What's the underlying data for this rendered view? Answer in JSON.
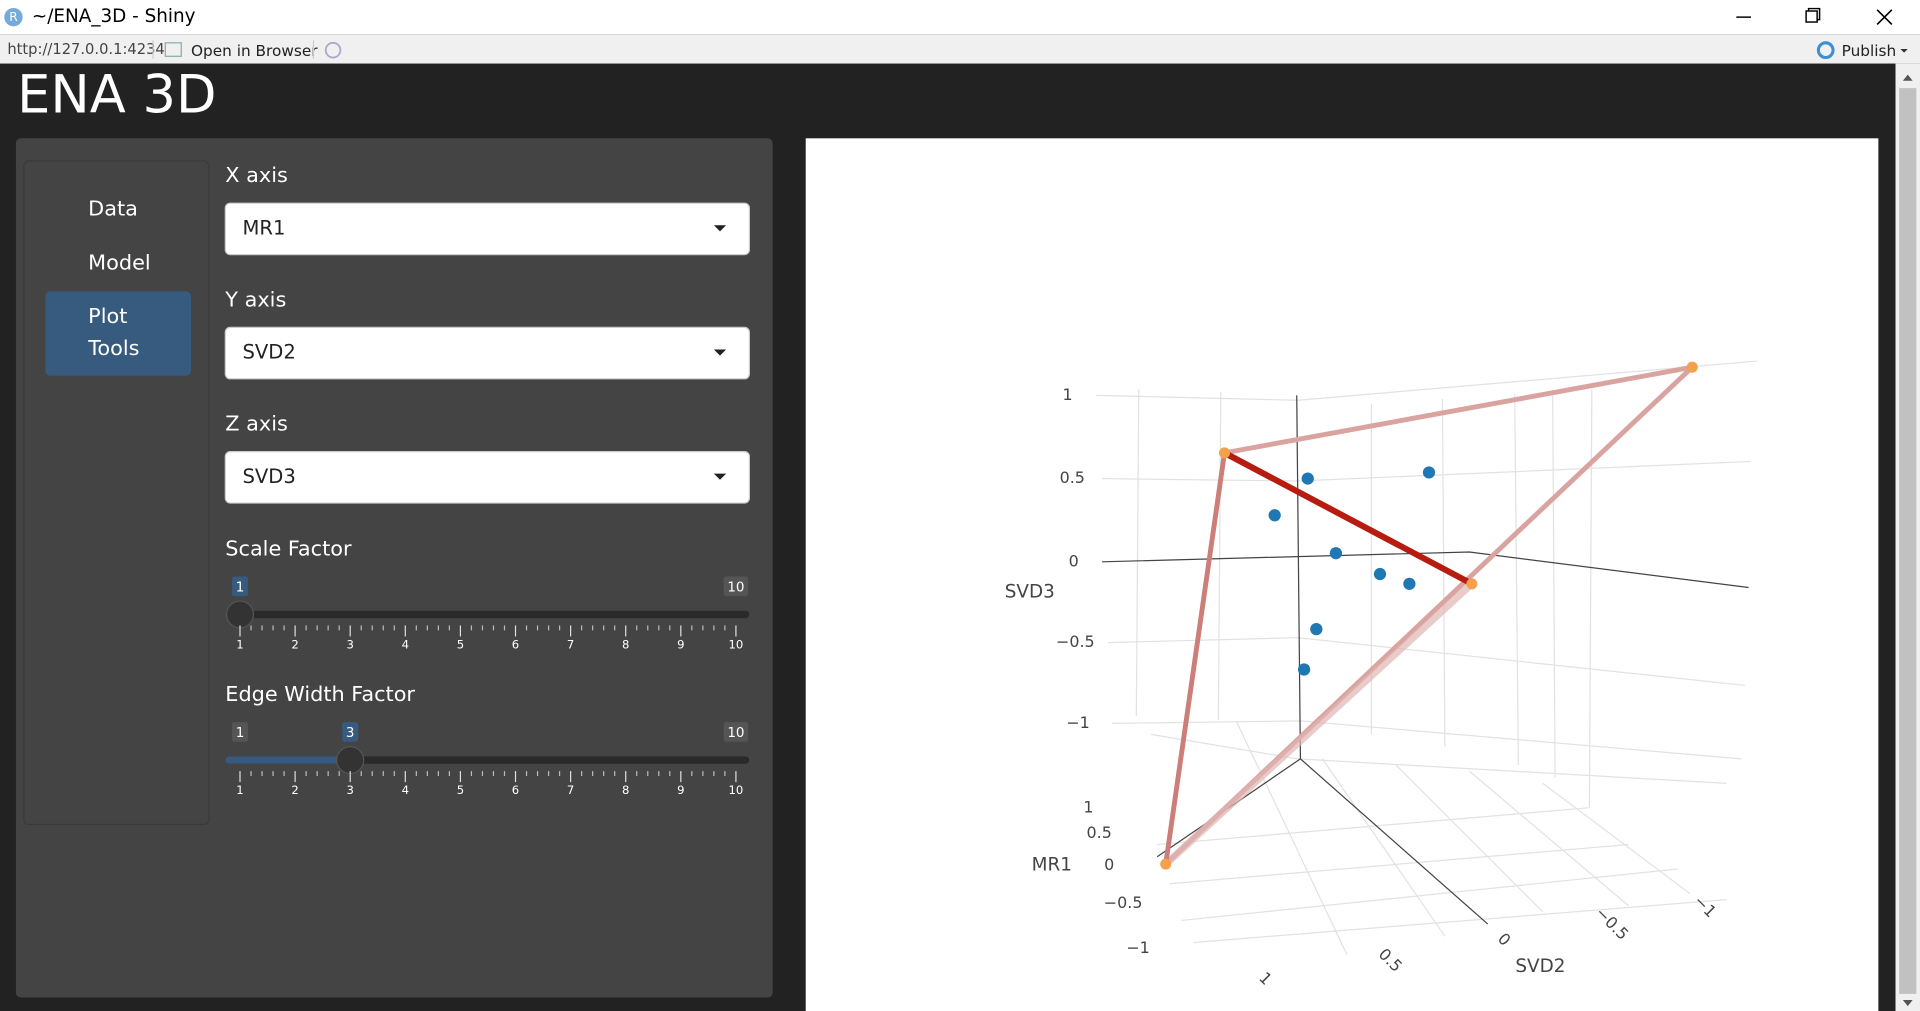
{
  "window": {
    "icon": "R",
    "title": "~/ENA_3D - Shiny"
  },
  "toolbar": {
    "url": "http://127.0.0.1:4234",
    "open_browser": "Open in Browser",
    "publish": "Publish"
  },
  "app": {
    "title": "ENA 3D"
  },
  "nav": {
    "items": [
      "Data",
      "Model",
      "Plot Tools"
    ],
    "active": 2
  },
  "controls": [
    {
      "label": "X axis",
      "value": "MR1"
    },
    {
      "label": "Y axis",
      "value": "SVD2"
    },
    {
      "label": "Z axis",
      "value": "SVD3"
    }
  ],
  "sliders": [
    {
      "label": "Scale Factor",
      "min": 1,
      "max": 10,
      "value": 1,
      "ticks": [
        1,
        2,
        3,
        4,
        5,
        6,
        7,
        8,
        9,
        10
      ]
    },
    {
      "label": "Edge Width Factor",
      "min": 1,
      "max": 10,
      "value": 3,
      "ticks": [
        1,
        2,
        3,
        4,
        5,
        6,
        7,
        8,
        9,
        10
      ]
    }
  ],
  "plot": {
    "axes": [
      {
        "title": "SVD3",
        "ticks": [
          "1",
          "0.5",
          "0",
          "−0.5",
          "−1"
        ]
      },
      {
        "title": "MR1",
        "ticks": [
          "1",
          "0.5",
          "0",
          "−0.5",
          "−1"
        ]
      },
      {
        "title": "SVD2",
        "ticks": [
          "1",
          "0.5",
          "0",
          "−0.5",
          "−1"
        ]
      }
    ]
  }
}
